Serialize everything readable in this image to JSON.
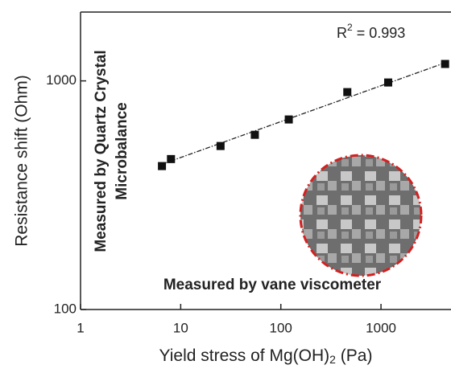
{
  "chart_data": {
    "type": "scatter",
    "x_label": {
      "base": "Yield stress of Mg(OH)",
      "sub": "2",
      "rest": " (Pa)"
    },
    "y_label": "Resistance shift (Ohm)",
    "annotation_r2": {
      "base": "R",
      "sup": "2",
      "rest": " = 0.993"
    },
    "annotation_qcm": [
      "Measured by Quartz Crystal",
      "Microbalance"
    ],
    "annotation_vane": "Measured by vane viscometer",
    "x": [
      6.5,
      8.0,
      25,
      55,
      120,
      461,
      1180,
      4365
    ],
    "values": [
      424,
      455,
      519,
      581,
      678,
      893,
      984,
      1186
    ],
    "color": "#111111",
    "fit": {
      "x": [
        6.5,
        4365
      ],
      "y": [
        432,
        1200
      ],
      "color": "#222222"
    },
    "log_x": true,
    "log_y": true,
    "xlim": [
      1,
      5000
    ],
    "ylim": [
      100,
      2000
    ],
    "xticks": [
      1,
      10,
      100,
      1000
    ],
    "yticks": [
      100,
      1000
    ]
  }
}
